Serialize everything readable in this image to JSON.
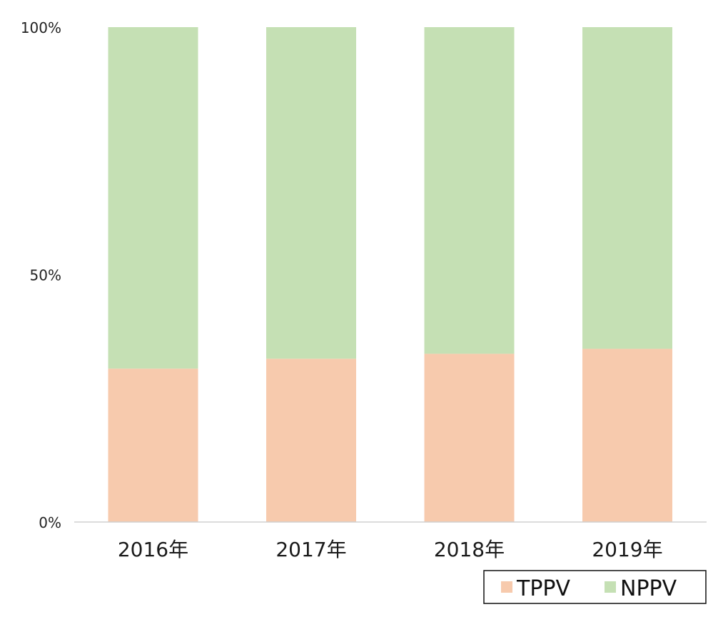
{
  "chart_data": {
    "type": "bar",
    "stacked": "percent",
    "categories": [
      "2016年",
      "2017年",
      "2018年",
      "2019年"
    ],
    "series": [
      {
        "name": "TPPV",
        "values": [
          31,
          33,
          34,
          35
        ],
        "color": "#f7caad"
      },
      {
        "name": "NPPV",
        "values": [
          69,
          67,
          66,
          65
        ],
        "color": "#c5e0b4"
      }
    ],
    "yticks": [
      "0%",
      "50%",
      "100%"
    ],
    "ylim": [
      0,
      100
    ],
    "grid": false,
    "legend": "bottom-right"
  }
}
